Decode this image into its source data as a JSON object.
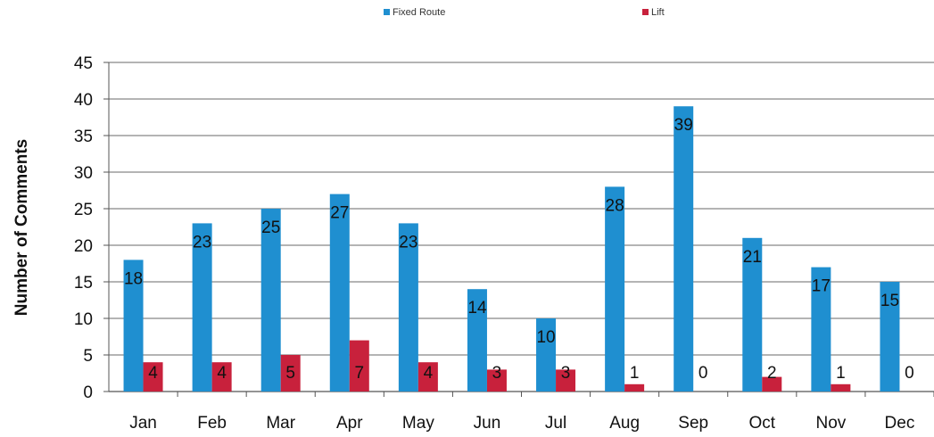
{
  "chart_data": {
    "type": "bar",
    "title": "",
    "xlabel": "",
    "ylabel": "Number of Comments",
    "categories": [
      "Jan",
      "Feb",
      "Mar",
      "Apr",
      "May",
      "Jun",
      "Jul",
      "Aug",
      "Sep",
      "Oct",
      "Nov",
      "Dec"
    ],
    "series": [
      {
        "name": "Fixed Route",
        "color": "#1f8fd0",
        "values": [
          18,
          23,
          25,
          27,
          23,
          14,
          10,
          28,
          39,
          21,
          17,
          15
        ]
      },
      {
        "name": "Lift",
        "color": "#c8213c",
        "values": [
          4,
          4,
          5,
          7,
          4,
          3,
          3,
          1,
          0,
          2,
          1,
          0
        ]
      }
    ],
    "ylim": [
      0,
      45
    ],
    "yticks": [
      0,
      5,
      10,
      15,
      20,
      25,
      30,
      35,
      40,
      45
    ],
    "grid": true,
    "legend_position": "top-center",
    "data_labels": true
  }
}
